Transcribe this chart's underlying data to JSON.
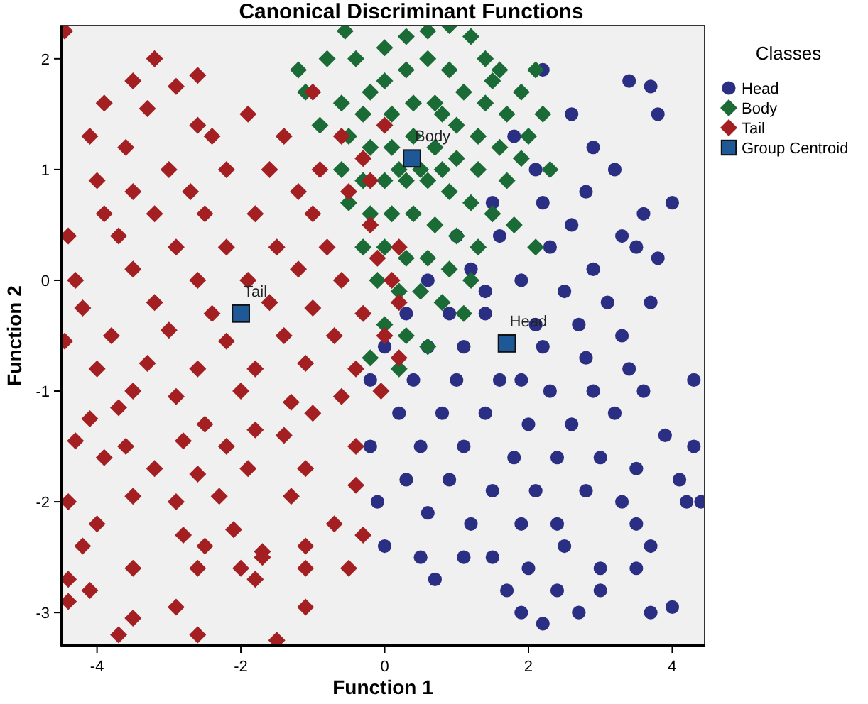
{
  "chart_data": {
    "type": "scatter",
    "title": "Canonical Discriminant Functions",
    "xlabel": "Function 1",
    "ylabel": "Function 2",
    "legend_title": "Classes",
    "legend": "right",
    "grid": false,
    "xlim": [
      -4.5,
      4.45
    ],
    "ylim": [
      -3.3,
      2.3
    ],
    "xticks": [
      -4,
      -2,
      0,
      2,
      4
    ],
    "yticks": [
      -3,
      -2,
      -1,
      0,
      1,
      2
    ],
    "series": [
      {
        "name": "Head",
        "color": "#2b2f84",
        "marker": "circle",
        "x": [
          2.2,
          3.4,
          3.7,
          3.8,
          2.6,
          1.8,
          2.1,
          2.9,
          3.2,
          3.6,
          4.0,
          3.8,
          1.5,
          2.2,
          2.8,
          3.3,
          1.0,
          1.6,
          2.3,
          2.9,
          3.5,
          0.6,
          1.2,
          1.9,
          2.5,
          3.1,
          3.7,
          0.3,
          0.9,
          1.4,
          2.1,
          2.7,
          3.3,
          0.0,
          0.6,
          1.1,
          2.2,
          2.8,
          3.4,
          4.3,
          -0.2,
          0.4,
          1.0,
          1.6,
          2.3,
          2.9,
          3.6,
          0.2,
          0.8,
          1.4,
          2.0,
          2.6,
          3.2,
          3.9,
          4.3,
          -0.2,
          0.5,
          1.1,
          1.8,
          2.4,
          3.0,
          3.5,
          4.1,
          0.3,
          0.9,
          1.5,
          2.1,
          2.8,
          3.3,
          4.2,
          4.4,
          -0.1,
          0.6,
          1.2,
          1.9,
          2.4,
          3.5,
          0.0,
          0.5,
          1.1,
          1.5,
          2.0,
          3.0,
          3.7,
          3.5,
          0.7,
          1.7,
          2.4,
          3.0,
          1.9,
          2.2,
          3.7,
          4.0,
          2.7,
          1.4,
          2.6,
          1.9,
          2.5
        ],
        "values": [
          1.9,
          1.8,
          1.75,
          1.5,
          1.5,
          1.3,
          1.0,
          1.2,
          1.0,
          0.6,
          0.7,
          0.2,
          0.7,
          0.7,
          0.8,
          0.4,
          0.4,
          0.4,
          0.3,
          0.1,
          0.3,
          0.0,
          0.1,
          0.0,
          -0.1,
          -0.2,
          -0.2,
          -0.3,
          -0.3,
          -0.3,
          -0.4,
          -0.4,
          -0.5,
          -0.6,
          -0.6,
          -0.6,
          -0.6,
          -0.7,
          -0.8,
          -0.9,
          -0.9,
          -0.9,
          -0.9,
          -0.9,
          -1.0,
          -1.0,
          -1.0,
          -1.2,
          -1.2,
          -1.2,
          -1.3,
          -1.3,
          -1.2,
          -1.4,
          -1.5,
          -1.5,
          -1.5,
          -1.5,
          -1.6,
          -1.6,
          -1.6,
          -1.7,
          -1.8,
          -1.8,
          -1.8,
          -1.9,
          -1.9,
          -1.9,
          -2.0,
          -2.0,
          -2.0,
          -2.0,
          -2.1,
          -2.2,
          -2.2,
          -2.2,
          -2.2,
          -2.4,
          -2.5,
          -2.5,
          -2.5,
          -2.6,
          -2.6,
          -2.4,
          -2.6,
          -2.7,
          -2.8,
          -2.8,
          -2.8,
          -3.0,
          -3.1,
          -3.0,
          -2.95,
          -3.0,
          -0.1,
          0.5,
          -0.9,
          -2.4
        ]
      },
      {
        "name": "Body",
        "color": "#1a6b35",
        "marker": "diamond",
        "x": [
          -1.2,
          -1.1,
          -0.8,
          -0.4,
          -0.2,
          -0.6,
          -0.55,
          0.0,
          0.3,
          0.6,
          0.9,
          1.2,
          1.4,
          1.6,
          2.1,
          1.9,
          1.7,
          2.0,
          0.0,
          0.3,
          0.6,
          0.9,
          1.1,
          1.4,
          -0.3,
          0.1,
          0.4,
          0.7,
          1.0,
          1.3,
          1.6,
          1.9,
          -0.5,
          -0.2,
          0.1,
          0.4,
          0.7,
          1.0,
          1.3,
          1.7,
          2.3,
          -0.6,
          -0.3,
          0.0,
          0.3,
          0.6,
          0.9,
          1.2,
          1.5,
          -0.5,
          -0.2,
          0.1,
          0.4,
          0.7,
          1.0,
          1.3,
          -0.3,
          0.0,
          0.3,
          0.6,
          0.9,
          1.2,
          -0.1,
          0.2,
          0.5,
          0.8,
          1.1,
          0.0,
          0.3,
          0.6,
          -0.2,
          0.2,
          0.8,
          1.5,
          -0.9,
          2.2,
          1.8,
          2.1,
          0.5,
          0.2,
          0.8
        ],
        "values": [
          1.9,
          1.7,
          2.0,
          2.0,
          1.7,
          1.6,
          2.25,
          2.1,
          2.2,
          2.25,
          2.3,
          2.2,
          2.0,
          1.9,
          1.9,
          1.7,
          1.5,
          1.3,
          1.8,
          1.9,
          2.0,
          1.9,
          1.7,
          1.6,
          1.5,
          1.5,
          1.6,
          1.6,
          1.4,
          1.3,
          1.2,
          1.1,
          1.3,
          1.2,
          1.2,
          1.3,
          1.2,
          1.1,
          1.0,
          0.9,
          1.0,
          1.0,
          0.9,
          0.9,
          0.9,
          0.9,
          0.8,
          0.7,
          0.6,
          0.7,
          0.6,
          0.6,
          0.6,
          0.5,
          0.4,
          0.3,
          0.3,
          0.3,
          0.2,
          0.2,
          0.1,
          0.0,
          0.0,
          -0.1,
          -0.1,
          -0.2,
          -0.3,
          -0.4,
          -0.5,
          -0.6,
          -0.7,
          -0.8,
          1.5,
          1.8,
          1.4,
          1.5,
          0.5,
          0.3,
          1.0,
          1.0,
          1.0
        ]
      },
      {
        "name": "Tail",
        "color": "#a31f22",
        "marker": "diamond",
        "x": [
          -4.45,
          -3.2,
          -2.6,
          -3.5,
          -2.9,
          -3.9,
          -3.3,
          -2.6,
          -4.1,
          -3.6,
          -2.4,
          -1.9,
          -1.4,
          -1.0,
          -0.6,
          -0.3,
          -3.0,
          -2.2,
          -1.6,
          -0.9,
          -4.0,
          -3.5,
          -2.7,
          -1.2,
          -0.5,
          -3.9,
          -3.2,
          -2.5,
          -1.8,
          -1.0,
          -0.2,
          -4.4,
          -3.7,
          -2.9,
          -2.2,
          -1.5,
          -0.8,
          -0.1,
          -4.3,
          -3.5,
          -2.6,
          -1.9,
          -1.2,
          -0.6,
          0.1,
          -4.2,
          -3.2,
          -2.4,
          -1.6,
          -1.0,
          -0.3,
          -4.45,
          -3.8,
          -3.0,
          -2.2,
          -1.4,
          -0.7,
          0.0,
          -4.0,
          -3.3,
          -2.6,
          -1.8,
          -1.1,
          -0.4,
          0.2,
          -3.5,
          -2.9,
          -2.0,
          -1.3,
          -0.6,
          -0.05,
          -4.1,
          -3.7,
          -2.5,
          -1.8,
          -1.0,
          -4.3,
          -3.6,
          -2.8,
          -2.2,
          -1.4,
          -0.4,
          -3.9,
          -3.2,
          -2.6,
          -1.9,
          -1.1,
          -0.4,
          -3.5,
          -2.9,
          -2.3,
          -1.3,
          -4.4,
          -4.0,
          -2.8,
          -2.1,
          -0.7,
          -0.3,
          -1.7,
          -4.2,
          -1.1,
          -2.5,
          -2.0,
          -2.6,
          -1.8,
          -3.5,
          -0.5,
          -1.1,
          -4.4,
          -4.1,
          -4.4,
          -2.9,
          -1.1,
          -3.5,
          -3.7,
          -2.6,
          -1.5,
          -1.7,
          0.2,
          -0.2,
          0.0,
          0.2
        ],
        "values": [
          2.25,
          2.0,
          1.85,
          1.8,
          1.75,
          1.6,
          1.55,
          1.4,
          1.3,
          1.2,
          1.3,
          1.5,
          1.3,
          1.7,
          1.3,
          1.1,
          1.0,
          1.0,
          1.0,
          1.0,
          0.9,
          0.8,
          0.8,
          0.8,
          0.8,
          0.6,
          0.6,
          0.6,
          0.6,
          0.6,
          0.5,
          0.4,
          0.4,
          0.3,
          0.3,
          0.3,
          0.3,
          0.2,
          0.0,
          0.1,
          0.0,
          0.0,
          0.1,
          0.0,
          0.0,
          -0.25,
          -0.2,
          -0.3,
          -0.2,
          -0.25,
          -0.3,
          -0.55,
          -0.5,
          -0.45,
          -0.55,
          -0.5,
          -0.5,
          -0.5,
          -0.8,
          -0.75,
          -0.8,
          -0.8,
          -0.75,
          -0.8,
          -0.7,
          -1.0,
          -1.05,
          -1.0,
          -1.1,
          -1.05,
          -1.0,
          -1.25,
          -1.15,
          -1.3,
          -1.35,
          -1.2,
          -1.45,
          -1.5,
          -1.45,
          -1.5,
          -1.4,
          -1.5,
          -1.6,
          -1.7,
          -1.75,
          -1.7,
          -1.7,
          -1.85,
          -1.95,
          -2.0,
          -1.95,
          -1.95,
          -2.0,
          -2.2,
          -2.3,
          -2.25,
          -2.2,
          -2.3,
          -2.45,
          -2.4,
          -2.4,
          -2.4,
          -2.6,
          -2.6,
          -2.7,
          -2.6,
          -2.6,
          -2.6,
          -2.7,
          -2.8,
          -2.9,
          -2.95,
          -2.95,
          -3.05,
          -3.2,
          -3.2,
          -3.25,
          -2.5,
          -0.2,
          0.9,
          1.4,
          0.3
        ]
      },
      {
        "name": "Group Centroid",
        "color": "#1e5896",
        "marker": "square",
        "x": [
          1.7,
          0.38,
          -2.0
        ],
        "values": [
          -0.57,
          1.1,
          -0.3
        ]
      }
    ],
    "annotations": [
      {
        "text": "Head",
        "x": 1.7,
        "y": -0.57
      },
      {
        "text": "Body",
        "x": 0.38,
        "y": 1.1
      },
      {
        "text": "Tail",
        "x": -2.0,
        "y": -0.3
      }
    ]
  }
}
